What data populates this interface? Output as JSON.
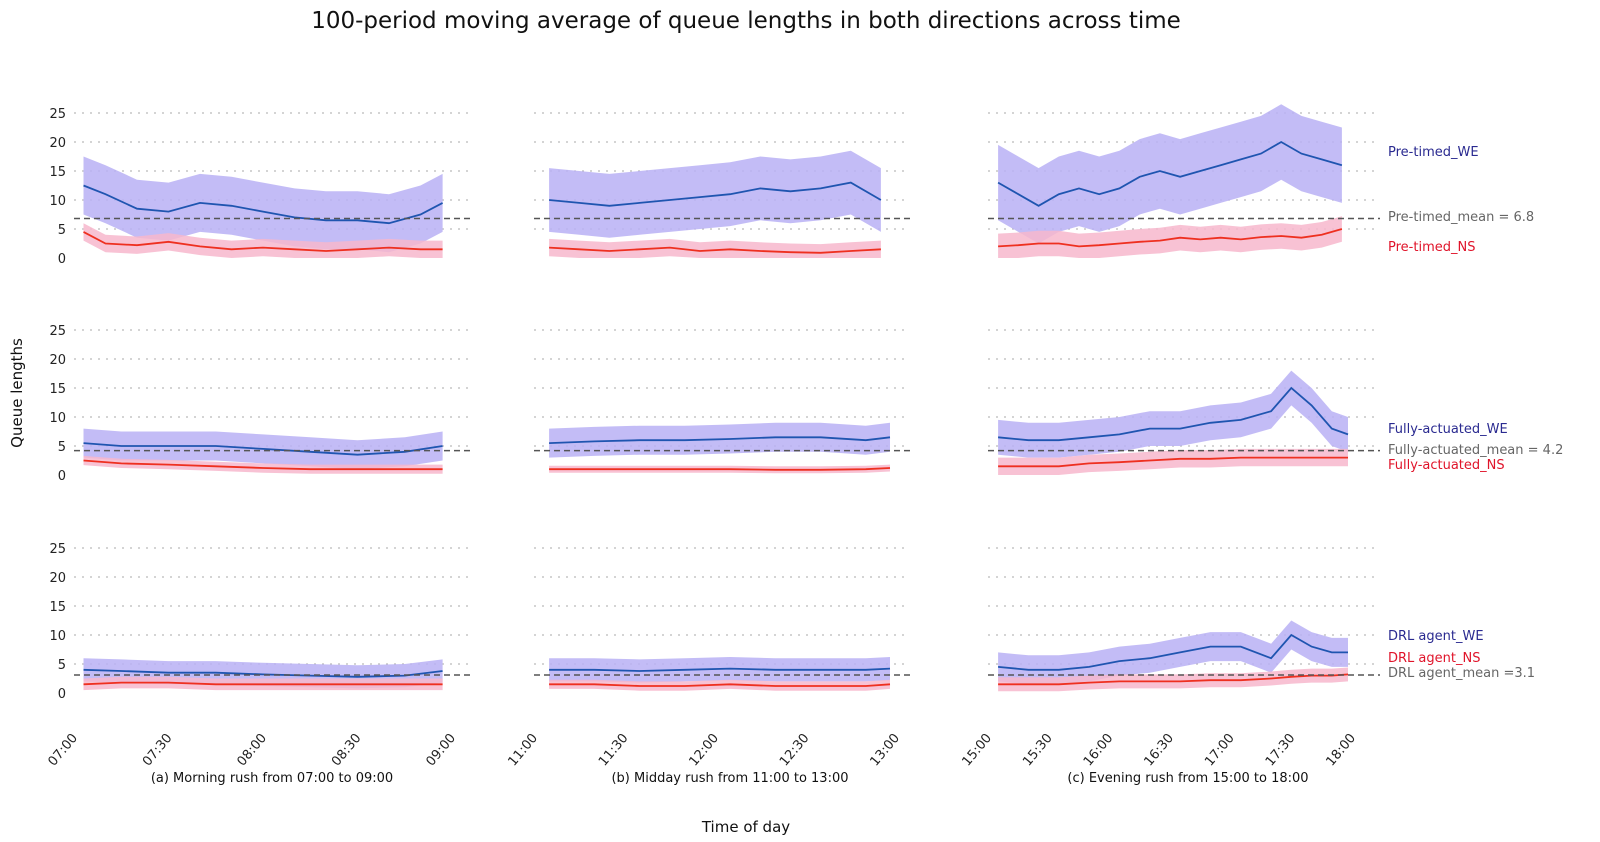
{
  "title": "100-period moving average of queue lengths in both directions across time",
  "xlabel": "Time of day",
  "ylabel": "Queue lengths",
  "colors": {
    "we_line": "#1f55b0",
    "we_band": "#b9b0f5",
    "ns_line": "#ee3020",
    "ns_band": "#f7b7cc",
    "overlap_band": "#a6a6a6",
    "mean_line": "#555555",
    "grid": "#bbbbbb",
    "we_label": "#2a2a90",
    "ns_label": "#e0142a",
    "mean_label": "#666666"
  },
  "chart_data": {
    "type": "line",
    "y_ticks": [
      0,
      5,
      10,
      15,
      20,
      25
    ],
    "ylim": [
      0,
      30
    ],
    "grid": true,
    "periods": [
      {
        "subtitle": "(a) Morning rush from 07:00 to 09:00",
        "x_ticks": [
          "07:00",
          "07:30",
          "08:00",
          "08:30",
          "09:00"
        ],
        "xlim_min": [
          0,
          120
        ]
      },
      {
        "subtitle": "(b) Midday rush from 11:00 to 13:00",
        "x_ticks": [
          "11:00",
          "11:30",
          "12:00",
          "12:30",
          "13:00"
        ],
        "xlim_min": [
          0,
          120
        ]
      },
      {
        "subtitle": "(c) Evening rush from 15:00 to 18:00",
        "x_ticks": [
          "15:00",
          "15:30",
          "16:00",
          "16:30",
          "17:00",
          "17:30",
          "18:00"
        ],
        "xlim_min": [
          0,
          180
        ]
      }
    ],
    "controllers": [
      {
        "we_label": "Pre-timed_WE",
        "ns_label": "Pre-timed_NS",
        "mean_label": "Pre-timed_mean = 6.8",
        "mean": 6.8,
        "series": [
          {
            "we": {
              "x": [
                3,
                10,
                20,
                30,
                40,
                50,
                60,
                70,
                80,
                90,
                100,
                110,
                117
              ],
              "y": [
                12.5,
                11,
                8.5,
                8,
                9.5,
                9,
                8,
                7,
                6.5,
                6.5,
                6,
                7.5,
                9.5
              ]
            },
            "ns": {
              "x": [
                3,
                10,
                20,
                30,
                40,
                50,
                60,
                70,
                80,
                90,
                100,
                110,
                117
              ],
              "y": [
                4.5,
                2.5,
                2.2,
                2.8,
                2,
                1.5,
                1.8,
                1.5,
                1.2,
                1.5,
                1.8,
                1.5,
                1.5
              ]
            },
            "we_band": 5,
            "ns_band": 1.5
          },
          {
            "we": {
              "x": [
                5,
                15,
                25,
                35,
                45,
                55,
                65,
                75,
                85,
                95,
                105,
                115
              ],
              "y": [
                10,
                9.5,
                9,
                9.5,
                10,
                10.5,
                11,
                12,
                11.5,
                12,
                13,
                10
              ]
            },
            "ns": {
              "x": [
                5,
                15,
                25,
                35,
                45,
                55,
                65,
                75,
                85,
                95,
                105,
                115
              ],
              "y": [
                1.8,
                1.5,
                1.2,
                1.5,
                1.8,
                1.2,
                1.5,
                1.2,
                1,
                0.9,
                1.2,
                1.5
              ]
            },
            "we_band": 5.5,
            "ns_band": 1.5
          },
          {
            "we": {
              "x": [
                5,
                15,
                25,
                35,
                45,
                55,
                65,
                75,
                85,
                95,
                105,
                115,
                125,
                135,
                145,
                155,
                165,
                175
              ],
              "y": [
                13,
                11,
                9,
                11,
                12,
                11,
                12,
                14,
                15,
                14,
                15,
                16,
                17,
                18,
                20,
                18,
                17,
                16
              ]
            },
            "ns": {
              "x": [
                5,
                15,
                25,
                35,
                45,
                55,
                65,
                75,
                85,
                95,
                105,
                115,
                125,
                135,
                145,
                155,
                165,
                175
              ],
              "y": [
                2,
                2.2,
                2.5,
                2.5,
                2,
                2.2,
                2.5,
                2.8,
                3,
                3.5,
                3.2,
                3.5,
                3.2,
                3.6,
                3.8,
                3.5,
                4,
                5
              ]
            },
            "we_band": 6.5,
            "ns_band": 2.2
          }
        ]
      },
      {
        "we_label": "Fully-actuated_WE",
        "ns_label": "Fully-actuated_NS",
        "mean_label": "Fully-actuated_mean = 4.2",
        "mean": 4.2,
        "series": [
          {
            "we": {
              "x": [
                3,
                15,
                30,
                45,
                60,
                75,
                90,
                105,
                117
              ],
              "y": [
                5.5,
                5,
                5,
                5,
                4.5,
                4,
                3.5,
                4,
                5
              ]
            },
            "ns": {
              "x": [
                3,
                15,
                30,
                45,
                60,
                75,
                90,
                105,
                117
              ],
              "y": [
                2.5,
                2,
                1.8,
                1.5,
                1.2,
                1,
                1,
                1,
                1
              ]
            },
            "we_band": 2.5,
            "ns_band": 0.8
          },
          {
            "we": {
              "x": [
                5,
                20,
                35,
                50,
                65,
                80,
                95,
                110,
                118
              ],
              "y": [
                5.5,
                5.8,
                6,
                6,
                6.2,
                6.5,
                6.5,
                6,
                6.5
              ]
            },
            "ns": {
              "x": [
                5,
                20,
                35,
                50,
                65,
                80,
                95,
                110,
                118
              ],
              "y": [
                1,
                1,
                1,
                1,
                1,
                0.9,
                0.9,
                1,
                1.2
              ]
            },
            "we_band": 2.5,
            "ns_band": 0.6
          },
          {
            "we": {
              "x": [
                5,
                20,
                35,
                50,
                65,
                80,
                95,
                110,
                125,
                140,
                150,
                160,
                170,
                178
              ],
              "y": [
                6.5,
                6,
                6,
                6.5,
                7,
                8,
                8,
                9,
                9.5,
                11,
                15,
                12,
                8,
                7
              ]
            },
            "ns": {
              "x": [
                5,
                20,
                35,
                50,
                65,
                80,
                95,
                110,
                125,
                140,
                150,
                160,
                170,
                178
              ],
              "y": [
                1.5,
                1.5,
                1.5,
                2,
                2.2,
                2.5,
                2.8,
                2.8,
                3,
                3,
                3,
                3,
                3,
                3
              ]
            },
            "we_band": 3,
            "ns_band": 1.5
          }
        ]
      },
      {
        "we_label": "DRL agent_WE",
        "ns_label": "DRL agent_NS",
        "mean_label": "DRL agent_mean =3.1",
        "mean": 3.1,
        "series": [
          {
            "we": {
              "x": [
                3,
                15,
                30,
                45,
                60,
                75,
                90,
                105,
                117
              ],
              "y": [
                4,
                3.8,
                3.5,
                3.5,
                3.2,
                3,
                2.8,
                3,
                3.8
              ]
            },
            "ns": {
              "x": [
                3,
                15,
                30,
                45,
                60,
                75,
                90,
                105,
                117
              ],
              "y": [
                1.5,
                1.8,
                1.8,
                1.5,
                1.5,
                1.5,
                1.5,
                1.5,
                1.5
              ]
            },
            "we_band": 2,
            "ns_band": 1
          },
          {
            "we": {
              "x": [
                5,
                20,
                35,
                50,
                65,
                80,
                95,
                110,
                118
              ],
              "y": [
                4,
                4,
                3.8,
                4,
                4.2,
                4,
                4,
                4,
                4.2
              ]
            },
            "ns": {
              "x": [
                5,
                20,
                35,
                50,
                65,
                80,
                95,
                110,
                118
              ],
              "y": [
                1.5,
                1.5,
                1.2,
                1.2,
                1.5,
                1.2,
                1.2,
                1.2,
                1.5
              ]
            },
            "we_band": 2,
            "ns_band": 0.8
          },
          {
            "we": {
              "x": [
                5,
                20,
                35,
                50,
                65,
                80,
                95,
                110,
                125,
                140,
                150,
                160,
                170,
                178
              ],
              "y": [
                4.5,
                4,
                4,
                4.5,
                5.5,
                6,
                7,
                8,
                8,
                6,
                10,
                8,
                7,
                7
              ]
            },
            "ns": {
              "x": [
                5,
                20,
                35,
                50,
                65,
                80,
                95,
                110,
                125,
                140,
                150,
                160,
                170,
                178
              ],
              "y": [
                1.5,
                1.5,
                1.5,
                1.8,
                2,
                2,
                2,
                2.2,
                2.2,
                2.5,
                2.8,
                3,
                3,
                3.2
              ]
            },
            "we_band": 2.5,
            "ns_band": 1.2
          }
        ]
      }
    ]
  }
}
